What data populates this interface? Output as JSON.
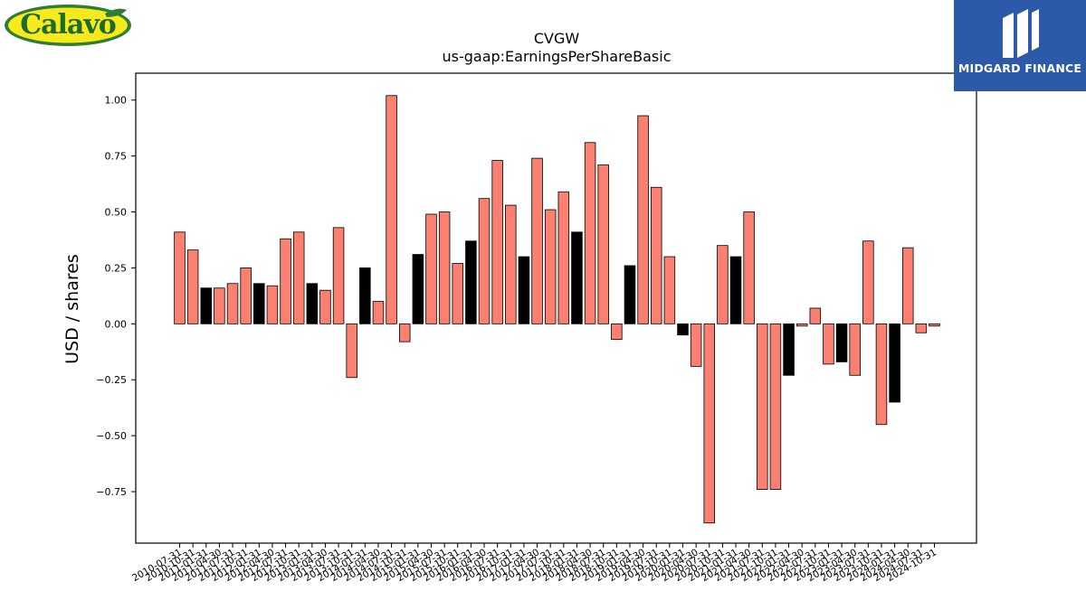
{
  "logos": {
    "left_text": "Calavo",
    "right_text": "MIDGARD FINANCE"
  },
  "chart_data": {
    "type": "bar",
    "title": "CVGW",
    "subtitle": "us-gaap:EarningsPerShareBasic",
    "xlabel": "",
    "ylabel": "USD / shares",
    "ylim": [
      -0.98,
      1.12
    ],
    "yticks": [
      -0.75,
      -0.5,
      -0.25,
      0.0,
      0.25,
      0.5,
      0.75,
      1.0
    ],
    "ytick_labels": [
      "−0.75",
      "−0.50",
      "−0.25",
      "0.00",
      "0.25",
      "0.50",
      "0.75",
      "1.00"
    ],
    "grid": false,
    "colors": {
      "quarterly": "#fa8072",
      "annual": "#000000",
      "edge": "#000000"
    },
    "categories": [
      "2010-07-31",
      "2010-10-31",
      "2011-01-31",
      "2011-04-30",
      "2011-07-31",
      "2011-10-31",
      "2012-01-31",
      "2012-04-30",
      "2012-07-31",
      "2012-10-31",
      "2013-01-31",
      "2013-04-30",
      "2013-07-31",
      "2013-10-31",
      "2014-01-31",
      "2014-04-30",
      "2014-07-31",
      "2014-10-31",
      "2015-01-31",
      "2015-04-30",
      "2015-07-31",
      "2015-10-31",
      "2016-01-31",
      "2016-04-30",
      "2016-07-31",
      "2016-10-31",
      "2017-01-31",
      "2017-04-30",
      "2017-07-31",
      "2017-10-31",
      "2018-01-31",
      "2018-04-30",
      "2018-07-31",
      "2018-10-31",
      "2019-01-31",
      "2019-04-30",
      "2019-07-31",
      "2019-10-31",
      "2020-01-31",
      "2020-04-30",
      "2020-07-31",
      "2020-10-31",
      "2021-01-31",
      "2021-04-30",
      "2021-07-31",
      "2021-10-31",
      "2022-01-31",
      "2022-04-30",
      "2022-07-31",
      "2022-10-31",
      "2023-01-31",
      "2023-04-30",
      "2023-07-31",
      "2023-10-31",
      "2024-01-31",
      "2024-04-30",
      "2024-07-31",
      "2024-10-31"
    ],
    "values": [
      0.41,
      0.33,
      0.16,
      0.16,
      0.18,
      0.25,
      0.18,
      0.17,
      0.38,
      0.41,
      0.18,
      0.15,
      0.43,
      -0.24,
      0.25,
      0.1,
      1.02,
      -0.08,
      0.31,
      0.49,
      0.5,
      0.27,
      0.37,
      0.56,
      0.73,
      0.53,
      0.3,
      0.74,
      0.51,
      0.59,
      0.41,
      0.81,
      0.71,
      -0.07,
      0.26,
      0.93,
      0.61,
      0.3,
      -0.05,
      -0.19,
      -0.89,
      0.35,
      0.3,
      0.5,
      -0.74,
      -0.74,
      -0.23,
      -0.01,
      0.07,
      -0.18,
      -0.17,
      -0.23,
      0.37,
      -0.45,
      -0.35,
      0.34,
      -0.04,
      -0.01
    ],
    "annual": [
      false,
      false,
      true,
      false,
      false,
      false,
      true,
      false,
      false,
      false,
      true,
      false,
      false,
      false,
      true,
      false,
      false,
      false,
      true,
      false,
      false,
      false,
      true,
      false,
      false,
      false,
      true,
      false,
      false,
      false,
      true,
      false,
      false,
      false,
      true,
      false,
      false,
      false,
      true,
      false,
      false,
      false,
      true,
      false,
      false,
      false,
      true,
      false,
      false,
      false,
      true,
      false,
      false,
      false,
      true,
      false,
      false,
      false
    ]
  }
}
